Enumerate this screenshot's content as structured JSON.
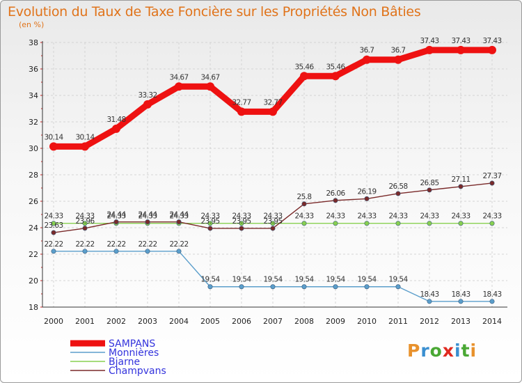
{
  "header": {
    "title": "Evolution du Taux de Taxe Foncière sur les Propriétés Non Bâties",
    "subtitle": "(en %)"
  },
  "logo": {
    "text": "Proxiti",
    "colors": [
      "#e8912c",
      "#3a8fd0",
      "#4aa834",
      "#e02a20",
      "#3a8fd0",
      "#4aa834",
      "#e8912c"
    ]
  },
  "chart_data": {
    "type": "line",
    "x": [
      "2000",
      "2001",
      "2002",
      "2003",
      "2004",
      "2005",
      "2006",
      "2007",
      "2008",
      "2009",
      "2010",
      "2011",
      "2012",
      "2013",
      "2014"
    ],
    "ylim": [
      18,
      38
    ],
    "yticks": [
      "18",
      "20",
      "22",
      "24",
      "26",
      "28",
      "30",
      "32",
      "34",
      "36",
      "38"
    ],
    "grid": true,
    "legend_position": "bottom-left",
    "series": [
      {
        "name": "SAMPANS",
        "color": "#ee1111",
        "width": 9,
        "values": [
          30.14,
          30.14,
          31.48,
          33.32,
          34.67,
          34.67,
          32.77,
          32.77,
          35.46,
          35.46,
          36.7,
          36.7,
          37.43,
          37.43,
          37.43
        ],
        "labels": [
          "30.14",
          "30.14",
          "31.48",
          "33.32",
          "34.67",
          "34.67",
          "32.77",
          "32.77",
          "35.46",
          "35.46",
          "36.7",
          "36.7",
          "37.43",
          "37.43",
          "37.43"
        ]
      },
      {
        "name": "Monnières",
        "color": "#5b9ecb",
        "width": 1.4,
        "values": [
          22.22,
          22.22,
          22.22,
          22.22,
          22.22,
          19.54,
          19.54,
          19.54,
          19.54,
          19.54,
          19.54,
          19.54,
          18.43,
          18.43,
          18.43
        ],
        "labels": [
          "22.22",
          "22.22",
          "22.22",
          "22.22",
          "22.22",
          "19.54",
          "19.54",
          "19.54",
          "19.54",
          "19.54",
          "19.54",
          "19.54",
          "18.43",
          "18.43",
          "18.43"
        ]
      },
      {
        "name": "Bjarne",
        "color": "#88d050",
        "width": 1.4,
        "values": [
          24.33,
          24.33,
          24.33,
          24.33,
          24.33,
          24.33,
          24.33,
          24.33,
          24.33,
          24.33,
          24.33,
          24.33,
          24.33,
          24.33,
          24.33
        ],
        "labels": [
          "24.33",
          "24.33",
          "24.33",
          "24.33",
          "24.33",
          "24.33",
          "24.33",
          "24.33",
          "24.33",
          "24.33",
          "24.33",
          "24.33",
          "24.33",
          "24.33",
          "24.33"
        ]
      },
      {
        "name": "Champvans",
        "color": "#7a2a2a",
        "width": 1.4,
        "values": [
          23.63,
          23.96,
          24.44,
          24.44,
          24.44,
          23.95,
          23.95,
          23.95,
          25.8,
          26.06,
          26.19,
          26.58,
          26.85,
          27.11,
          27.37
        ],
        "labels": [
          "23.63",
          "23.96",
          "24.44",
          "24.44",
          "24.44",
          "23.95",
          "23.95",
          "23.95",
          "25.8",
          "26.06",
          "26.19",
          "26.58",
          "26.85",
          "27.11",
          "27.37"
        ]
      }
    ]
  }
}
